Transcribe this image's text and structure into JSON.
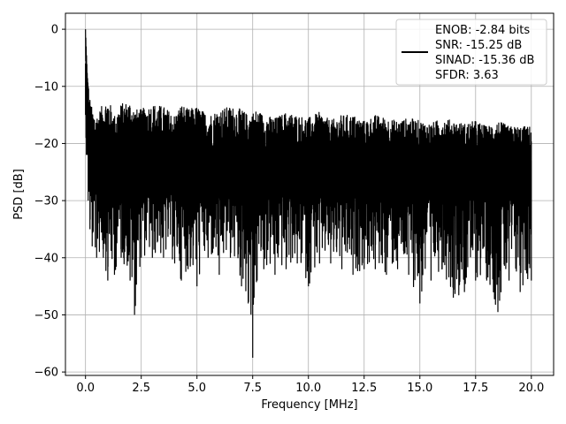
{
  "chart_data": {
    "type": "line",
    "title": "",
    "xlabel": "Frequency [MHz]",
    "ylabel": "PSD [dB]",
    "xlim": [
      -0.9,
      21.0
    ],
    "ylim": [
      -60.6,
      2.8
    ],
    "xticks": [
      0.0,
      2.5,
      5.0,
      7.5,
      10.0,
      12.5,
      15.0,
      17.5,
      20.0
    ],
    "xtick_labels": [
      "0.0",
      "2.5",
      "5.0",
      "7.5",
      "10.0",
      "12.5",
      "15.0",
      "17.5",
      "20.0"
    ],
    "yticks": [
      0,
      -10,
      -20,
      -30,
      -40,
      -50,
      -60
    ],
    "ytick_labels": [
      "0",
      "−10",
      "−20",
      "−30",
      "−40",
      "−50",
      "−60"
    ],
    "grid": true,
    "legend_position": "upper right",
    "legend_entries": [
      "ENOB: -2.84 bits",
      "SNR: -15.25 dB",
      "SINAD: -15.36 dB",
      "SFDR: 3.63"
    ],
    "series": [
      {
        "color": "#000000",
        "x": [
          0.0,
          0.04,
          0.08,
          0.12,
          0.2,
          0.3,
          0.5,
          0.8,
          1.0,
          1.3,
          1.6,
          2.0,
          2.2,
          2.5,
          3.0,
          3.5,
          4.0,
          4.3,
          4.6,
          5.0,
          5.5,
          6.0,
          6.5,
          7.0,
          7.3,
          7.5,
          7.7,
          8.0,
          8.5,
          9.0,
          9.5,
          10.0,
          10.5,
          11.0,
          11.5,
          12.0,
          12.5,
          13.0,
          13.5,
          14.0,
          14.5,
          15.0,
          15.5,
          16.0,
          16.5,
          17.0,
          17.5,
          18.0,
          18.5,
          19.0,
          19.5,
          20.0
        ],
        "y_max": [
          0.0,
          -4.0,
          -8.0,
          -10.0,
          -12.0,
          -14.0,
          -15.0,
          -13.0,
          -12.0,
          -15.0,
          -13.0,
          -12.5,
          -14.0,
          -14.0,
          -13.0,
          -13.5,
          -15.0,
          -13.0,
          -14.0,
          -13.5,
          -15.0,
          -14.0,
          -13.5,
          -14.0,
          -15.0,
          -14.5,
          -14.0,
          -15.0,
          -15.5,
          -14.5,
          -15.0,
          -15.5,
          -14.5,
          -16.0,
          -15.0,
          -15.0,
          -16.0,
          -15.0,
          -15.5,
          -16.0,
          -15.5,
          -16.0,
          -16.5,
          -15.5,
          -16.0,
          -16.5,
          -16.0,
          -17.0,
          -16.0,
          -17.0,
          -17.0,
          -17.0
        ],
        "y_min": [
          -15.0,
          -22.0,
          -22.0,
          -30.0,
          -35.0,
          -38.0,
          -40.0,
          -40.0,
          -44.0,
          -43.0,
          -40.0,
          -44.0,
          -50.0,
          -40.0,
          -40.0,
          -40.0,
          -41.0,
          -44.0,
          -42.0,
          -45.0,
          -40.0,
          -43.0,
          -40.0,
          -45.0,
          -48.0,
          -57.5,
          -44.0,
          -42.0,
          -43.0,
          -42.0,
          -41.0,
          -45.0,
          -41.0,
          -41.0,
          -42.0,
          -43.0,
          -42.0,
          -42.0,
          -43.0,
          -42.0,
          -43.0,
          -48.0,
          -44.0,
          -42.0,
          -47.0,
          -46.0,
          -44.0,
          -44.0,
          -49.5,
          -44.0,
          -46.0,
          -44.0
        ],
        "band_center": -26.0
      }
    ]
  }
}
